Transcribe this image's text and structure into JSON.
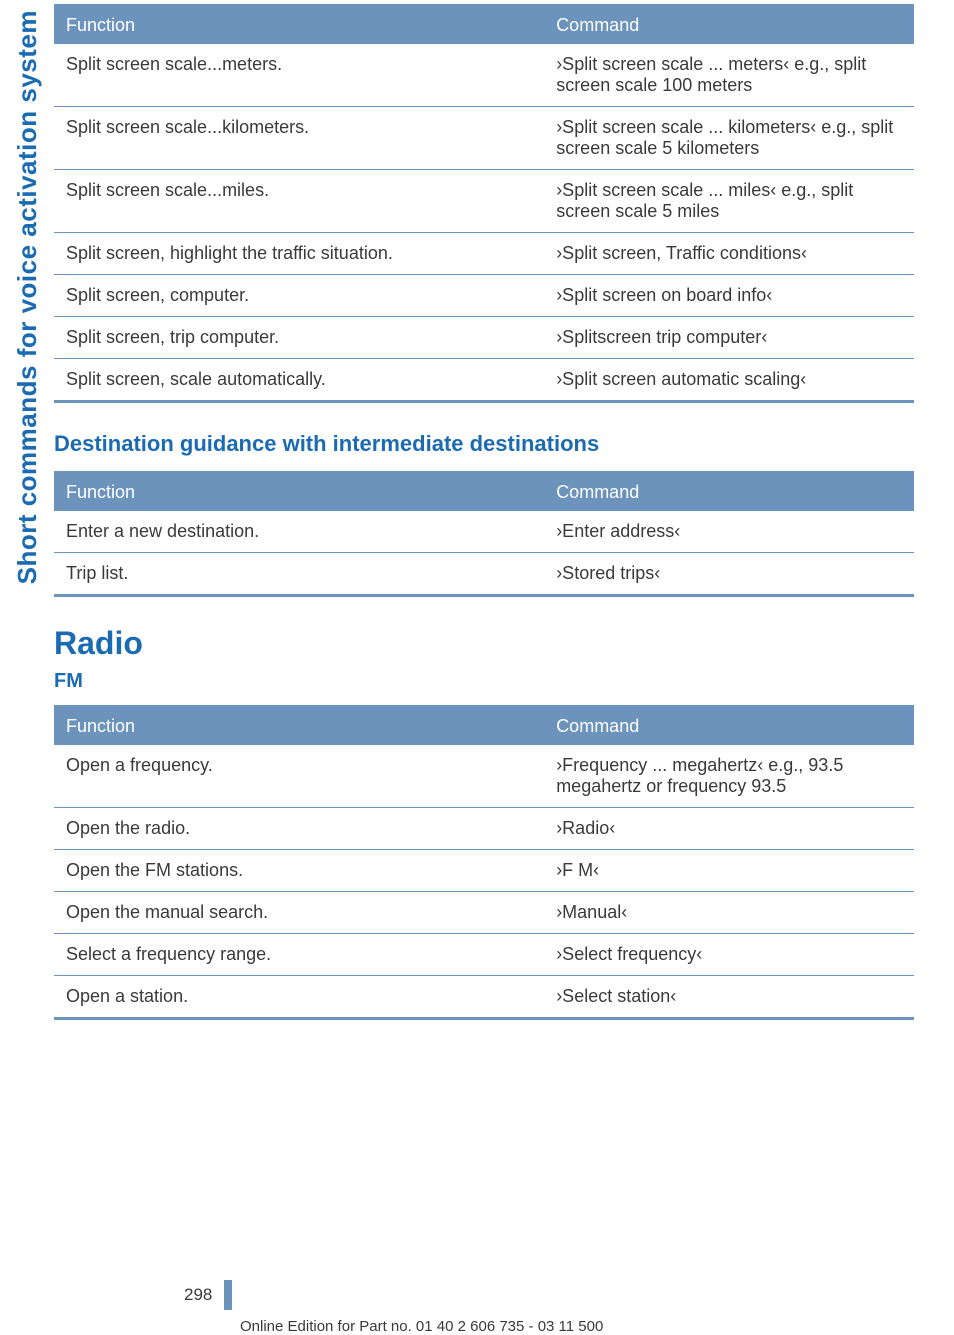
{
  "side_label": "Short commands for voice activation system",
  "table1": {
    "headers": {
      "func": "Function",
      "cmd": "Command"
    },
    "rows": [
      {
        "func": "Split screen scale...meters.",
        "cmd": "›Split screen scale ... meters‹ e.g., split screen scale 100 meters"
      },
      {
        "func": "Split screen scale...kilometers.",
        "cmd": "›Split screen scale ... kilometers‹ e.g., split screen scale 5 kilometers"
      },
      {
        "func": "Split screen scale...miles.",
        "cmd": "›Split screen scale ... miles‹ e.g., split screen scale 5 miles"
      },
      {
        "func": "Split screen, highlight the traffic situation.",
        "cmd": "›Split screen, Traffic conditions‹"
      },
      {
        "func": "Split screen, computer.",
        "cmd": "›Split screen on board info‹"
      },
      {
        "func": "Split screen, trip computer.",
        "cmd": "›Splitscreen trip computer‹"
      },
      {
        "func": "Split screen, scale automatically.",
        "cmd": "›Split screen automatic scaling‹"
      }
    ]
  },
  "section2_title": "Destination guidance with intermediate destinations",
  "table2": {
    "headers": {
      "func": "Function",
      "cmd": "Command"
    },
    "rows": [
      {
        "func": "Enter a new destination.",
        "cmd": "›Enter address‹"
      },
      {
        "func": "Trip list.",
        "cmd": "›Stored trips‹"
      }
    ]
  },
  "big_title": "Radio",
  "sub_title": "FM",
  "table3": {
    "headers": {
      "func": "Function",
      "cmd": "Command"
    },
    "rows": [
      {
        "func": "Open a frequency.",
        "cmd": "›Frequency ... megahertz‹ e.g., 93.5 megahertz or frequency 93.5"
      },
      {
        "func": "Open the radio.",
        "cmd": "›Radio‹"
      },
      {
        "func": "Open the FM stations.",
        "cmd": "›F M‹"
      },
      {
        "func": "Open the manual search.",
        "cmd": "›Manual‹"
      },
      {
        "func": "Select a frequency range.",
        "cmd": "›Select frequency‹"
      },
      {
        "func": "Open a station.",
        "cmd": "›Select station‹"
      }
    ]
  },
  "page_number": "298",
  "footer_text": "Online Edition for Part no. 01 40 2 606 735 - 03 11 500"
}
